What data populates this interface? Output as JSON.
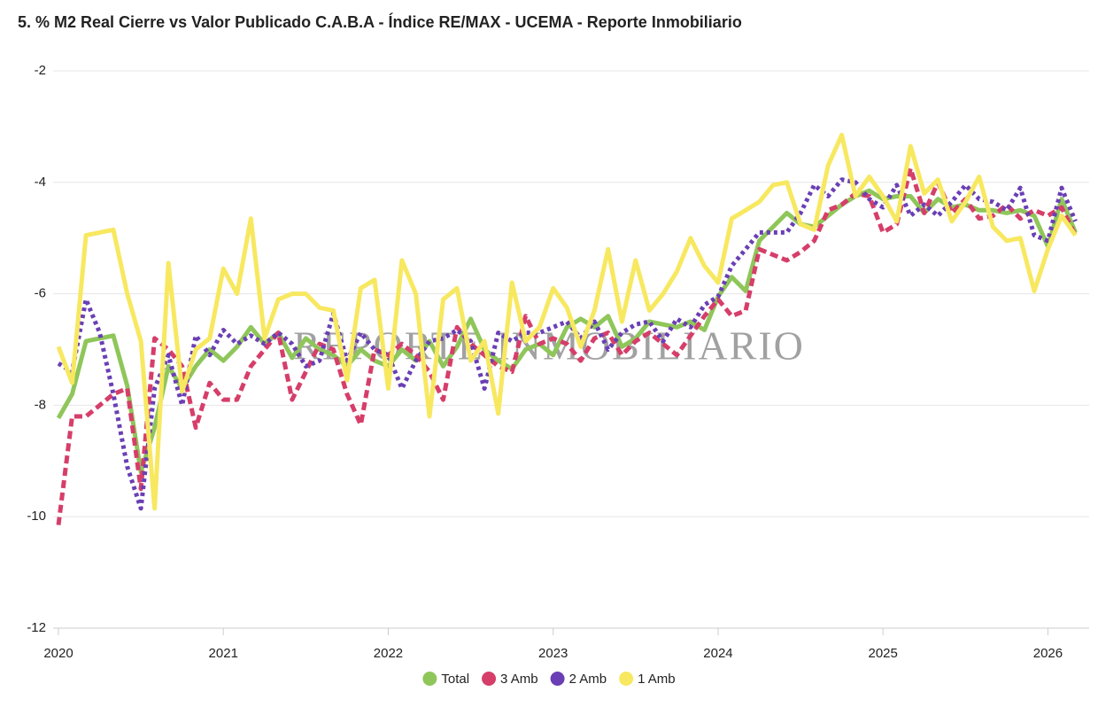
{
  "chart_data": {
    "type": "line",
    "title": "5. % M2 Real Cierre vs Valor Publicado C.A.B.A - Índice RE/MAX - UCEMA - Reporte Inmobiliario",
    "watermark": "REPORTE INMOBILIARIO",
    "x": [
      2020,
      2020.083,
      2020.167,
      2020.25,
      2020.333,
      2020.417,
      2020.5,
      2020.583,
      2020.667,
      2020.75,
      2020.833,
      2020.917,
      2021,
      2021.083,
      2021.167,
      2021.25,
      2021.333,
      2021.417,
      2021.5,
      2021.583,
      2021.667,
      2021.75,
      2021.833,
      2021.917,
      2022,
      2022.083,
      2022.167,
      2022.25,
      2022.333,
      2022.417,
      2022.5,
      2022.583,
      2022.667,
      2022.75,
      2022.833,
      2022.917,
      2023,
      2023.083,
      2023.167,
      2023.25,
      2023.333,
      2023.417,
      2023.5,
      2023.583,
      2023.667,
      2023.75,
      2023.833,
      2023.917,
      2024,
      2024.083,
      2024.167,
      2024.25,
      2024.333,
      2024.417,
      2024.5,
      2024.583,
      2024.667,
      2024.75,
      2024.833,
      2024.917,
      2025,
      2025.083,
      2025.167,
      2025.25,
      2025.333,
      2025.417,
      2025.5,
      2025.583,
      2025.667,
      2025.75,
      2025.833,
      2025.917,
      2026,
      2026.083,
      2026.167
    ],
    "series": [
      {
        "name": "Total",
        "color": "#8fc65a",
        "style": "solid",
        "values": [
          -8.23,
          -7.8,
          -6.85,
          -6.8,
          -6.75,
          -7.65,
          -9.2,
          -8.4,
          -7.3,
          -7.7,
          -7.3,
          -7.0,
          -7.2,
          -6.95,
          -6.6,
          -6.9,
          -6.7,
          -7.15,
          -6.8,
          -7.0,
          -7.1,
          -7.3,
          -7.0,
          -7.2,
          -7.3,
          -7.0,
          -7.2,
          -6.85,
          -7.3,
          -6.95,
          -6.45,
          -7.0,
          -7.2,
          -7.35,
          -7.0,
          -6.9,
          -7.1,
          -6.6,
          -6.45,
          -6.6,
          -6.4,
          -6.95,
          -6.8,
          -6.5,
          -6.55,
          -6.6,
          -6.5,
          -6.65,
          -6.05,
          -5.7,
          -5.95,
          -5.05,
          -4.8,
          -4.55,
          -4.75,
          -4.8,
          -4.6,
          -4.4,
          -4.25,
          -4.15,
          -4.3,
          -4.25,
          -4.25,
          -4.55,
          -4.3,
          -4.45,
          -4.4,
          -4.5,
          -4.5,
          -4.55,
          -4.5,
          -4.6,
          -5.15,
          -4.3,
          -4.9
        ]
      },
      {
        "name": "3 Amb",
        "color": "#d63e6a",
        "style": "dashed",
        "values": [
          -10.15,
          -8.2,
          -8.2,
          -8.0,
          -7.8,
          -7.7,
          -9.5,
          -6.8,
          -7.0,
          -7.3,
          -8.4,
          -7.6,
          -7.9,
          -7.9,
          -7.3,
          -7.0,
          -6.7,
          -7.9,
          -7.4,
          -6.9,
          -7.0,
          -7.8,
          -8.35,
          -7.0,
          -7.1,
          -6.9,
          -7.1,
          -7.4,
          -7.9,
          -6.6,
          -6.9,
          -7.1,
          -7.3,
          -7.4,
          -6.4,
          -6.9,
          -6.8,
          -6.9,
          -7.2,
          -6.8,
          -6.7,
          -7.1,
          -6.85,
          -6.7,
          -6.9,
          -7.1,
          -6.75,
          -6.4,
          -6.1,
          -6.4,
          -6.3,
          -5.2,
          -5.3,
          -5.4,
          -5.25,
          -5.05,
          -4.5,
          -4.4,
          -4.2,
          -4.25,
          -4.9,
          -4.75,
          -3.75,
          -4.55,
          -4.0,
          -4.55,
          -4.3,
          -4.65,
          -4.6,
          -4.4,
          -4.65,
          -4.5,
          -4.6,
          -4.45,
          -4.95
        ]
      },
      {
        "name": "2 Amb",
        "color": "#6a3fb5",
        "style": "dotted",
        "values": [
          -7.25,
          -7.4,
          -6.1,
          -6.7,
          -7.8,
          -9.1,
          -9.85,
          -7.7,
          -7.1,
          -8.0,
          -6.75,
          -7.1,
          -6.65,
          -6.9,
          -6.75,
          -6.9,
          -6.7,
          -6.9,
          -7.3,
          -7.2,
          -6.35,
          -7.2,
          -6.7,
          -7.0,
          -7.1,
          -7.7,
          -7.2,
          -6.85,
          -6.8,
          -6.65,
          -6.85,
          -7.7,
          -6.7,
          -6.85,
          -6.7,
          -6.7,
          -6.6,
          -6.5,
          -6.8,
          -6.5,
          -7.0,
          -6.7,
          -6.55,
          -6.5,
          -6.85,
          -6.45,
          -6.6,
          -6.2,
          -6.05,
          -5.5,
          -5.2,
          -4.9,
          -4.9,
          -4.9,
          -4.55,
          -4.05,
          -4.25,
          -3.95,
          -4.0,
          -4.3,
          -4.45,
          -4.05,
          -4.6,
          -4.4,
          -4.6,
          -4.35,
          -4.05,
          -4.3,
          -4.35,
          -4.5,
          -4.1,
          -4.95,
          -5.05,
          -4.1,
          -4.7
        ]
      },
      {
        "name": "1 Amb",
        "color": "#f7e860",
        "style": "solid",
        "values": [
          -6.95,
          -7.6,
          -4.95,
          -4.9,
          -4.85,
          -6.0,
          -6.85,
          -9.85,
          -5.45,
          -7.75,
          -7.0,
          -6.8,
          -5.55,
          -6.0,
          -4.65,
          -6.8,
          -6.1,
          -6.0,
          -6.0,
          -6.25,
          -6.3,
          -7.55,
          -5.9,
          -5.75,
          -7.7,
          -5.4,
          -6.0,
          -8.2,
          -6.1,
          -5.9,
          -7.2,
          -6.85,
          -8.15,
          -5.8,
          -6.85,
          -6.6,
          -5.9,
          -6.25,
          -6.95,
          -6.3,
          -5.2,
          -6.5,
          -5.4,
          -6.3,
          -6.0,
          -5.6,
          -5.0,
          -5.5,
          -5.8,
          -4.65,
          -4.5,
          -4.35,
          -4.05,
          -4.0,
          -4.75,
          -4.85,
          -3.7,
          -3.15,
          -4.25,
          -3.9,
          -4.25,
          -4.7,
          -3.35,
          -4.2,
          -3.95,
          -4.7,
          -4.35,
          -3.9,
          -4.8,
          -5.05,
          -5.0,
          -5.95,
          -5.2,
          -4.6,
          -4.95
        ]
      }
    ],
    "xlim": [
      2020,
      2026.25
    ],
    "xticks": [
      2020,
      2021,
      2022,
      2023,
      2024,
      2025,
      2026
    ],
    "ylim": [
      -12,
      -2
    ],
    "yticks": [
      -12,
      -10,
      -8,
      -6,
      -4,
      -2
    ],
    "grid": true,
    "legend": "bottom"
  }
}
